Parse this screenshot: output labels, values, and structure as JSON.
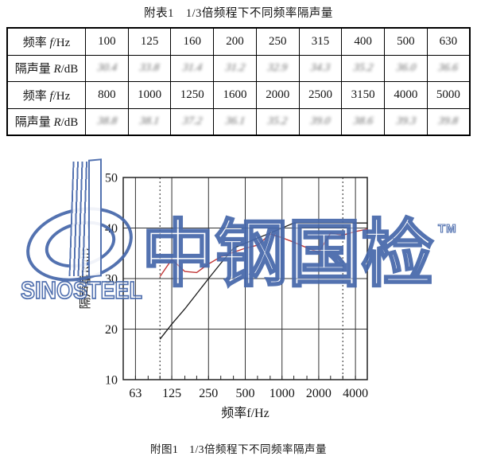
{
  "table_title": "附表1　1/3倍频程下不同频率隔声量",
  "figure_caption": "附图1　1/3倍频程下不同频率隔声量",
  "table": {
    "rows": [
      {
        "kind": "frequency-header",
        "blurred": false,
        "label": {
          "cn": "频率 ",
          "sym": "f",
          "unit": "/Hz"
        },
        "values": [
          "100",
          "125",
          "160",
          "200",
          "250",
          "315",
          "400",
          "500",
          "630"
        ]
      },
      {
        "kind": "insulation-data",
        "blurred": true,
        "label": {
          "cn": "隔声量 ",
          "sym": "R",
          "unit": "/dB"
        },
        "values": [
          "30.4",
          "33.8",
          "31.4",
          "31.2",
          "32.9",
          "34.3",
          "35.2",
          "36.0",
          "36.6"
        ]
      },
      {
        "kind": "frequency-header",
        "blurred": false,
        "label": {
          "cn": "频率 ",
          "sym": "f",
          "unit": "/Hz"
        },
        "values": [
          "800",
          "1000",
          "1250",
          "1600",
          "2000",
          "2500",
          "3150",
          "4000",
          "5000"
        ]
      },
      {
        "kind": "insulation-data",
        "blurred": true,
        "label": {
          "cn": "隔声量 ",
          "sym": "R",
          "unit": "/dB"
        },
        "values": [
          "38.8",
          "38.1",
          "37.2",
          "36.1",
          "35.2",
          "39.0",
          "38.6",
          "39.3",
          "39.8"
        ]
      }
    ],
    "note": "insulation rows appear blurred/illegible in the source scan"
  },
  "chart_data": {
    "type": "line",
    "title": "附图1 1/3倍频程下不同频率隔声量",
    "xlabel": "频率f/Hz",
    "ylabel": "隔声量R/dB",
    "x_scale": "log",
    "xlim_hz": [
      50,
      5000
    ],
    "ylim": [
      10,
      50
    ],
    "grid": true,
    "legend": "none",
    "y_ticks": [
      10,
      20,
      30,
      40,
      50
    ],
    "x_tick_labels_hz": [
      63,
      125,
      250,
      500,
      1000,
      2000,
      4000
    ],
    "x_gridlines_hz": [
      63,
      125,
      250,
      500,
      1000,
      2000,
      4000
    ],
    "dotted_guides_hz": [
      100,
      3150
    ],
    "minor_ticks_hz": [
      50,
      63,
      80,
      100,
      125,
      160,
      200,
      250,
      315,
      400,
      500,
      630,
      800,
      1000,
      1250,
      1600,
      2000,
      2500,
      3150,
      4000,
      5000
    ],
    "x_hz": [
      100,
      125,
      160,
      200,
      250,
      315,
      400,
      500,
      630,
      800,
      1000,
      1250,
      1600,
      2000,
      2500,
      3150,
      4000,
      5000
    ],
    "series": [
      {
        "name": "measured-insulation",
        "color": "#c03434",
        "values": [
          30.4,
          33.8,
          31.4,
          31.2,
          32.9,
          34.3,
          35.2,
          36.0,
          36.6,
          38.8,
          38.1,
          37.2,
          36.1,
          35.2,
          39.0,
          38.6,
          39.3,
          39.8
        ]
      },
      {
        "name": "reference-curve",
        "color": "#1a1a1a",
        "values": [
          18,
          21,
          24,
          27,
          30,
          33,
          36,
          37,
          38,
          39,
          40,
          41,
          41,
          41,
          41,
          41,
          41,
          41
        ]
      }
    ]
  },
  "watermark": {
    "brand_cn": "中钢国检",
    "brand_en": "SINOSTEEL",
    "tm": "TM",
    "color": "#4668ab"
  }
}
